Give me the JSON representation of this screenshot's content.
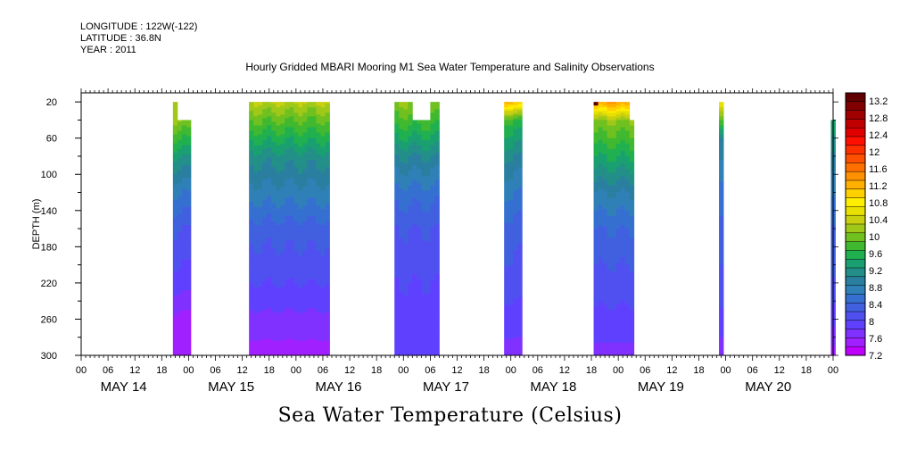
{
  "header": {
    "longitude": "LONGITUDE : 122W(-122)",
    "latitude": "LATITUDE : 36.8N",
    "year": "YEAR : 2011"
  },
  "title": "Hourly Gridded MBARI Mooring M1 Sea Water Temperature and Salinity Observations",
  "bottom_label": "Sea Water Temperature (Celsius)",
  "chart_data": {
    "type": "heatmap",
    "title": "Hourly Gridded MBARI Mooring M1 Sea Water Temperature and Salinity Observations",
    "ylabel": "DEPTH (m)",
    "xlabel": "",
    "x_unit": "hours since MAY 14 00:00",
    "xlim": [
      0,
      168
    ],
    "ylim": [
      300,
      10
    ],
    "y_ticks": [
      20,
      60,
      100,
      140,
      180,
      220,
      260,
      300
    ],
    "x_hour_labels": [
      "00",
      "06",
      "12",
      "18",
      "00",
      "06",
      "12",
      "18",
      "00",
      "06",
      "12",
      "18",
      "00",
      "06",
      "12",
      "18",
      "00",
      "06",
      "12",
      "18",
      "00",
      "06",
      "12",
      "18",
      "00",
      "06",
      "12",
      "18",
      "00"
    ],
    "day_labels": [
      "MAY 14",
      "MAY 15",
      "MAY 16",
      "MAY 17",
      "MAY 18",
      "MAY 19",
      "MAY 20"
    ],
    "colorbar": {
      "levels": [
        7.2,
        7.4,
        7.6,
        7.8,
        8.0,
        8.2,
        8.4,
        8.6,
        8.8,
        9.0,
        9.2,
        9.4,
        9.6,
        9.8,
        10.0,
        10.2,
        10.4,
        10.6,
        10.8,
        11.0,
        11.2,
        11.4,
        11.6,
        11.8,
        12.0,
        12.2,
        12.4,
        12.6,
        12.8,
        13.0,
        13.2
      ],
      "labels": [
        "13.2",
        "12.8",
        "12.4",
        "12",
        "11.6",
        "11.2",
        "10.8",
        "10.4",
        "10",
        "9.6",
        "9.2",
        "8.8",
        "8.4",
        "8",
        "7.6",
        "7.2"
      ],
      "colors": [
        "#c000ff",
        "#a020ff",
        "#8030ff",
        "#6040ff",
        "#5050f0",
        "#4060e0",
        "#3570d0",
        "#3080b8",
        "#2a7fa0",
        "#238f88",
        "#1aa070",
        "#20b050",
        "#40b830",
        "#70c020",
        "#a0c818",
        "#c8d010",
        "#e8e000",
        "#ffee00",
        "#ffd000",
        "#ffb000",
        "#ff9000",
        "#ff7000",
        "#ff5000",
        "#ff3000",
        "#ff1000",
        "#e00000",
        "#c00000",
        "#a00000",
        "#800000",
        "#600000"
      ]
    },
    "segments": [
      {
        "start": 20.5,
        "end": 24.5,
        "top": 40,
        "profile": [
          [
            40,
            10.0
          ],
          [
            80,
            9.2
          ],
          [
            120,
            8.6
          ],
          [
            160,
            8.2
          ],
          [
            220,
            7.9
          ],
          [
            250,
            7.6
          ],
          [
            300,
            7.4
          ]
        ],
        "cap": [
          [
            20.5,
            21.5,
            20
          ]
        ]
      },
      {
        "start": 37.5,
        "end": 55.5,
        "top": 20,
        "profile": [
          [
            20,
            10.2
          ],
          [
            40,
            9.8
          ],
          [
            80,
            9.1
          ],
          [
            120,
            8.7
          ],
          [
            160,
            8.3
          ],
          [
            220,
            8.0
          ],
          [
            265,
            7.7
          ],
          [
            300,
            7.5
          ]
        ]
      },
      {
        "start": 70.0,
        "end": 80.0,
        "top": 20,
        "profile": [
          [
            20,
            10.0
          ],
          [
            40,
            9.7
          ],
          [
            80,
            9.0
          ],
          [
            120,
            8.5
          ],
          [
            160,
            8.2
          ],
          [
            220,
            8.0
          ],
          [
            270,
            7.9
          ],
          [
            300,
            7.8
          ]
        ],
        "notch": [
          74.0,
          78.0,
          40
        ]
      },
      {
        "start": 94.5,
        "end": 98.5,
        "top": 20,
        "profile": [
          [
            20,
            11.0
          ],
          [
            40,
            9.6
          ],
          [
            80,
            9.0
          ],
          [
            120,
            8.6
          ],
          [
            160,
            8.3
          ],
          [
            220,
            8.1
          ],
          [
            280,
            7.8
          ],
          [
            300,
            7.6
          ]
        ]
      },
      {
        "start": 114.5,
        "end": 123.5,
        "top": 20,
        "profile": [
          [
            20,
            11.2
          ],
          [
            40,
            10.0
          ],
          [
            80,
            9.4
          ],
          [
            120,
            8.8
          ],
          [
            160,
            8.4
          ],
          [
            220,
            8.1
          ],
          [
            270,
            7.9
          ],
          [
            300,
            7.7
          ]
        ],
        "cap": [
          [
            122.5,
            123.5,
            40
          ]
        ],
        "hot": true
      },
      {
        "start": 142.5,
        "end": 143.5,
        "top": 20,
        "profile": [
          [
            20,
            10.6
          ],
          [
            60,
            9.0
          ],
          [
            120,
            8.5
          ],
          [
            200,
            8.2
          ],
          [
            270,
            7.9
          ],
          [
            300,
            7.6
          ]
        ]
      },
      {
        "start": 167.5,
        "end": 168.5,
        "top": 40,
        "profile": [
          [
            40,
            9.4
          ],
          [
            100,
            8.8
          ],
          [
            160,
            8.4
          ],
          [
            220,
            8.2
          ],
          [
            280,
            7.7
          ],
          [
            300,
            7.5
          ]
        ]
      }
    ]
  }
}
